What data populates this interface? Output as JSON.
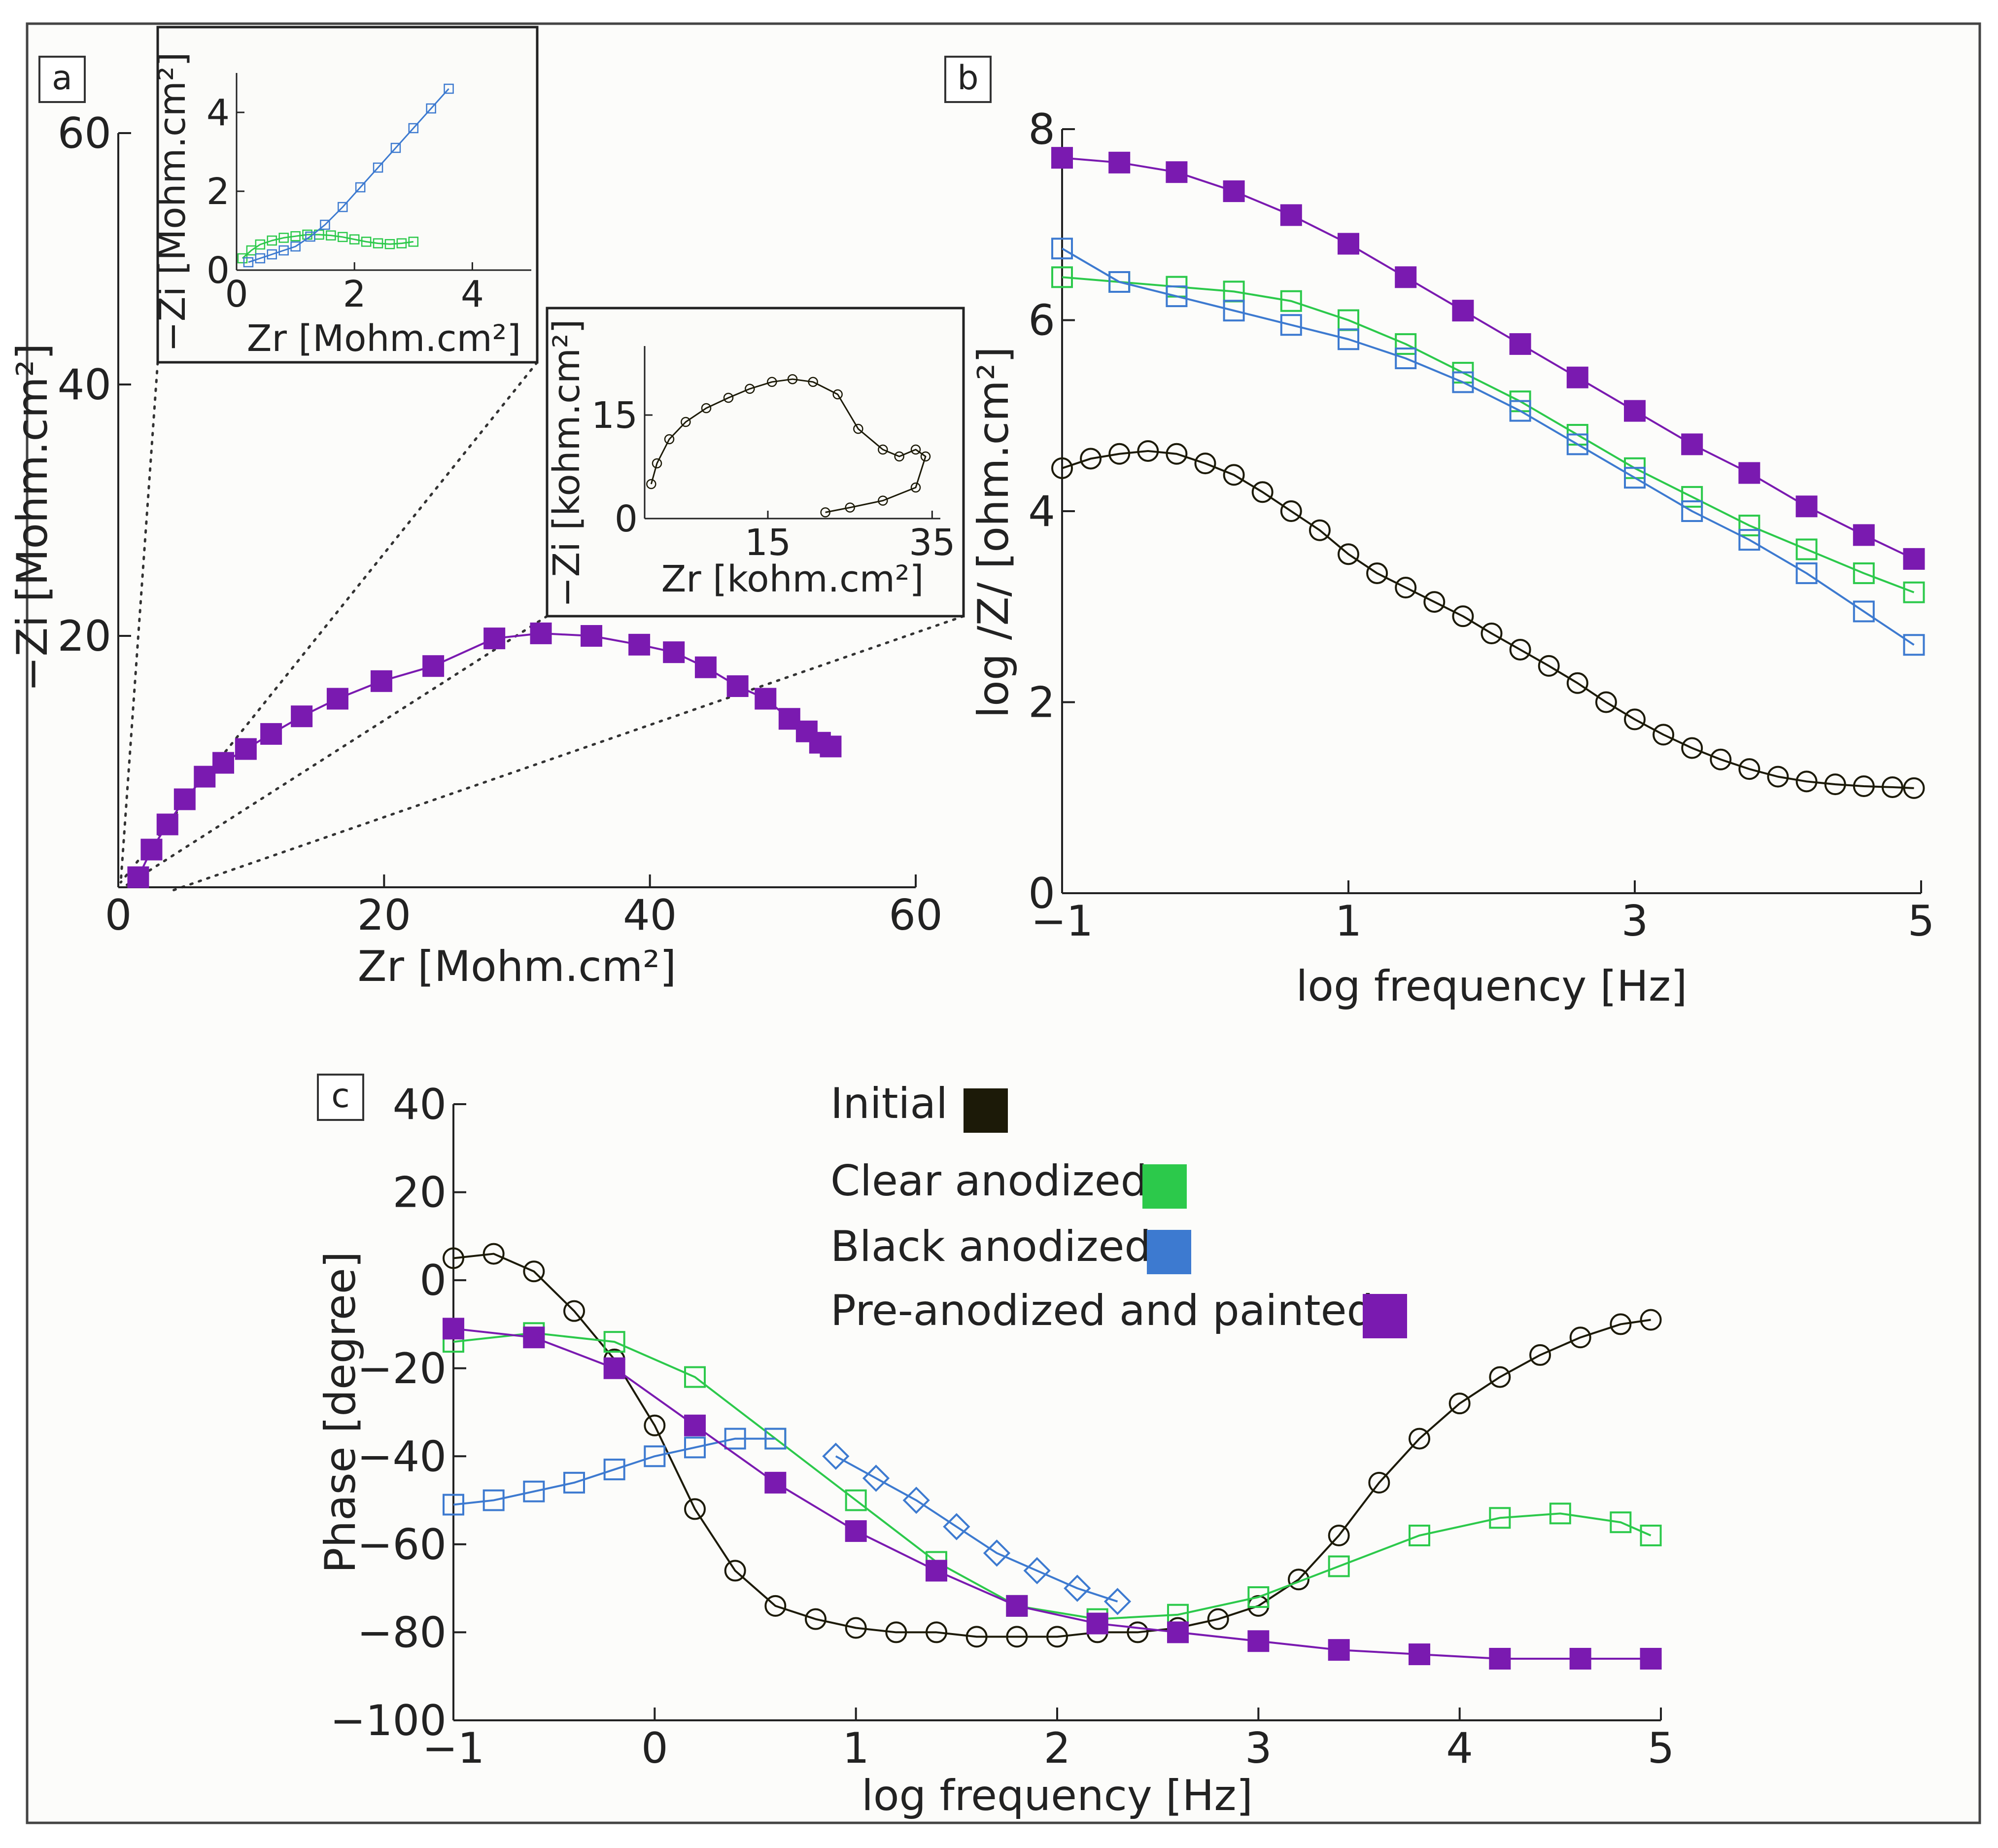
{
  "panels": {
    "a": {
      "label": "a"
    },
    "b": {
      "label": "b"
    },
    "c": {
      "label": "c"
    }
  },
  "colors": {
    "initial": "#1c1a08",
    "clear_anodized": "#2cc94b",
    "black_anodized": "#3d7ad0",
    "painted": "#7a1ab0"
  },
  "legend": {
    "placement": "top-center of panel c",
    "items": [
      {
        "label": "Initial",
        "color": "#1c1a08"
      },
      {
        "label": "Clear anodized",
        "color": "#2cc94b"
      },
      {
        "label": "Black anodized",
        "color": "#3d7ad0"
      },
      {
        "label": "Pre-anodized and painted",
        "color": "#7a1ab0"
      }
    ]
  },
  "chart_data": [
    {
      "id": "a_main",
      "type": "scatter",
      "xlabel": "Zr [Mohm.cm²]",
      "ylabel": "−Zi [Mohm.cm²]",
      "xlim": [
        0,
        60
      ],
      "ylim": [
        0,
        60
      ],
      "xticks": [
        0,
        20,
        40,
        60
      ],
      "yticks": [
        20,
        40,
        60
      ],
      "series": [
        {
          "name": "Pre-anodized and painted",
          "marker": "filled-square",
          "x": [
            1.5,
            2.5,
            3.7,
            5.0,
            6.5,
            7.9,
            9.6,
            11.5,
            13.8,
            16.5,
            19.8,
            23.7,
            28.3,
            31.8,
            35.6,
            39.2,
            41.8,
            44.2,
            46.6,
            48.7,
            50.5,
            51.8,
            52.8,
            53.6
          ],
          "y": [
            0.8,
            3.0,
            5.0,
            7.0,
            8.8,
            9.9,
            11.0,
            12.2,
            13.6,
            15.0,
            16.4,
            17.6,
            19.8,
            20.2,
            20.0,
            19.3,
            18.7,
            17.5,
            16.0,
            15.0,
            13.4,
            12.4,
            11.5,
            11.2
          ]
        }
      ]
    },
    {
      "id": "a_inset_mohm",
      "type": "scatter",
      "xlabel": "Zr [Mohm.cm²]",
      "ylabel": "−Zi [Mohm.cm²]",
      "xlim": [
        0,
        5
      ],
      "ylim": [
        0,
        5
      ],
      "xticks": [
        0,
        2,
        4
      ],
      "yticks": [
        0,
        2,
        4
      ],
      "series": [
        {
          "name": "Clear anodized",
          "marker": "open-square",
          "x": [
            0.1,
            0.25,
            0.4,
            0.6,
            0.8,
            1.0,
            1.2,
            1.4,
            1.6,
            1.8,
            2.0,
            2.2,
            2.4,
            2.6,
            2.8,
            3.0
          ],
          "y": [
            0.3,
            0.5,
            0.65,
            0.75,
            0.82,
            0.86,
            0.9,
            0.9,
            0.88,
            0.84,
            0.78,
            0.72,
            0.68,
            0.66,
            0.68,
            0.72
          ]
        },
        {
          "name": "Black anodized",
          "marker": "open-square",
          "x": [
            0.2,
            0.4,
            0.6,
            0.8,
            1.0,
            1.25,
            1.5,
            1.8,
            2.1,
            2.4,
            2.7,
            3.0,
            3.3,
            3.6
          ],
          "y": [
            0.2,
            0.3,
            0.4,
            0.5,
            0.6,
            0.85,
            1.15,
            1.6,
            2.1,
            2.6,
            3.1,
            3.6,
            4.1,
            4.6
          ]
        }
      ]
    },
    {
      "id": "a_inset_kohm",
      "type": "scatter",
      "xlabel": "Zr [kohm.cm²]",
      "ylabel": "−Zi [kohm.cm²]",
      "xlim": [
        0,
        36
      ],
      "ylim": [
        0,
        25
      ],
      "xticks": [
        15,
        35
      ],
      "yticks": [
        0,
        15
      ],
      "series": [
        {
          "name": "Initial",
          "marker": "open-circle",
          "x": [
            0.8,
            1.5,
            3.0,
            5.0,
            7.5,
            10.2,
            12.8,
            15.5,
            18.0,
            20.5,
            23.5,
            26.0,
            29.0,
            31.0,
            33.0,
            34.2,
            33.0,
            29.0,
            25.0,
            22.0
          ],
          "y": [
            5.0,
            8.0,
            11.5,
            14.0,
            16.0,
            17.5,
            18.8,
            19.8,
            20.2,
            19.8,
            18.0,
            13.0,
            10.0,
            9.0,
            10.0,
            9.0,
            4.5,
            2.6,
            1.6,
            0.9
          ]
        }
      ]
    },
    {
      "id": "b_bode_modulus",
      "type": "scatter",
      "xlabel": "log frequency [Hz]",
      "ylabel": "log /Z/ [ohm.cm²]",
      "xlim": [
        -1,
        5
      ],
      "ylim": [
        0,
        8
      ],
      "xticks": [
        -1,
        1,
        3,
        5
      ],
      "yticks": [
        0,
        2,
        4,
        6,
        8
      ],
      "series": [
        {
          "name": "Initial",
          "marker": "open-circle",
          "x": [
            -1.0,
            -0.8,
            -0.6,
            -0.4,
            -0.2,
            0.0,
            0.2,
            0.4,
            0.6,
            0.8,
            1.0,
            1.2,
            1.4,
            1.6,
            1.8,
            2.0,
            2.2,
            2.4,
            2.6,
            2.8,
            3.0,
            3.2,
            3.4,
            3.6,
            3.8,
            4.0,
            4.2,
            4.4,
            4.6,
            4.8,
            4.95
          ],
          "y": [
            4.45,
            4.55,
            4.6,
            4.63,
            4.6,
            4.5,
            4.38,
            4.2,
            4.0,
            3.8,
            3.55,
            3.35,
            3.2,
            3.05,
            2.9,
            2.72,
            2.55,
            2.38,
            2.2,
            2.0,
            1.82,
            1.66,
            1.52,
            1.4,
            1.3,
            1.22,
            1.17,
            1.14,
            1.12,
            1.11,
            1.1
          ]
        },
        {
          "name": "Clear anodized",
          "marker": "open-square",
          "x": [
            -1.0,
            -0.6,
            -0.2,
            0.2,
            0.6,
            1.0,
            1.4,
            1.8,
            2.2,
            2.6,
            3.0,
            3.4,
            3.8,
            4.2,
            4.6,
            4.95
          ],
          "y": [
            6.45,
            6.4,
            6.35,
            6.3,
            6.2,
            6.0,
            5.75,
            5.45,
            5.15,
            4.8,
            4.45,
            4.15,
            3.85,
            3.6,
            3.35,
            3.15
          ]
        },
        {
          "name": "Black anodized",
          "marker": "open-square",
          "x": [
            -1.0,
            -0.6,
            -0.2,
            0.2,
            0.6,
            1.0,
            1.4,
            1.8,
            2.2,
            2.6,
            3.0,
            3.4,
            3.8,
            4.2,
            4.6,
            4.95
          ],
          "y": [
            6.75,
            6.4,
            6.25,
            6.1,
            5.95,
            5.8,
            5.6,
            5.35,
            5.05,
            4.7,
            4.35,
            4.0,
            3.7,
            3.35,
            2.95,
            2.6
          ]
        },
        {
          "name": "Pre-anodized and painted",
          "marker": "filled-square",
          "x": [
            -1.0,
            -0.6,
            -0.2,
            0.2,
            0.6,
            1.0,
            1.4,
            1.8,
            2.2,
            2.6,
            3.0,
            3.4,
            3.8,
            4.2,
            4.6,
            4.95
          ],
          "y": [
            7.7,
            7.65,
            7.55,
            7.35,
            7.1,
            6.8,
            6.45,
            6.1,
            5.75,
            5.4,
            5.05,
            4.7,
            4.4,
            4.05,
            3.75,
            3.5
          ]
        }
      ]
    },
    {
      "id": "c_bode_phase",
      "type": "scatter",
      "xlabel": "log frequency [Hz]",
      "ylabel": "Phase [degree]",
      "xlim": [
        -1,
        5
      ],
      "ylim": [
        -100,
        40
      ],
      "xticks": [
        -1,
        0,
        1,
        2,
        3,
        4,
        5
      ],
      "yticks": [
        -100,
        -80,
        -60,
        -40,
        -20,
        0,
        20,
        40
      ],
      "series": [
        {
          "name": "Initial",
          "marker": "open-circle",
          "x": [
            -1.0,
            -0.8,
            -0.6,
            -0.4,
            -0.2,
            0.0,
            0.2,
            0.4,
            0.6,
            0.8,
            1.0,
            1.2,
            1.4,
            1.6,
            1.8,
            2.0,
            2.2,
            2.4,
            2.6,
            2.8,
            3.0,
            3.2,
            3.4,
            3.6,
            3.8,
            4.0,
            4.2,
            4.4,
            4.6,
            4.8,
            4.95
          ],
          "y": [
            5,
            6,
            2,
            -7,
            -18,
            -33,
            -52,
            -66,
            -74,
            -77,
            -79,
            -80,
            -80,
            -81,
            -81,
            -81,
            -80,
            -80,
            -79,
            -77,
            -74,
            -68,
            -58,
            -46,
            -36,
            -28,
            -22,
            -17,
            -13,
            -10,
            -9
          ]
        },
        {
          "name": "Clear anodized",
          "marker": "open-square",
          "x": [
            -1.0,
            -0.6,
            -0.2,
            0.2,
            0.6,
            1.0,
            1.4,
            1.8,
            2.2,
            2.6,
            3.0,
            3.4,
            3.8,
            4.2,
            4.5,
            4.8,
            4.95
          ],
          "y": [
            -14,
            -12,
            -14,
            -22,
            -36,
            -50,
            -64,
            -74,
            -77,
            -76,
            -72,
            -65,
            -58,
            -54,
            -53,
            -55,
            -58
          ]
        },
        {
          "name": "Black anodized",
          "marker": "open-square",
          "x": [
            -1.0,
            -0.8,
            -0.6,
            -0.4,
            -0.2,
            0.0,
            0.2,
            0.4,
            0.6
          ],
          "y": [
            -51,
            -50,
            -48,
            -46,
            -43,
            -40,
            -38,
            -36,
            -36
          ]
        },
        {
          "name": "Black anodized",
          "marker": "open-diamond",
          "x": [
            0.9,
            1.1,
            1.3,
            1.5,
            1.7,
            1.9,
            2.1,
            2.3
          ],
          "y": [
            -40,
            -45,
            -50,
            -56,
            -62,
            -66,
            -70,
            -73
          ]
        },
        {
          "name": "Pre-anodized and painted",
          "marker": "filled-square",
          "x": [
            -1.0,
            -0.6,
            -0.2,
            0.2,
            0.6,
            1.0,
            1.4,
            1.8,
            2.2,
            2.6,
            3.0,
            3.4,
            3.8,
            4.2,
            4.6,
            4.95
          ],
          "y": [
            -11,
            -13,
            -20,
            -33,
            -46,
            -57,
            -66,
            -74,
            -78,
            -80,
            -82,
            -84,
            -85,
            -86,
            -86,
            -86
          ]
        }
      ]
    }
  ]
}
